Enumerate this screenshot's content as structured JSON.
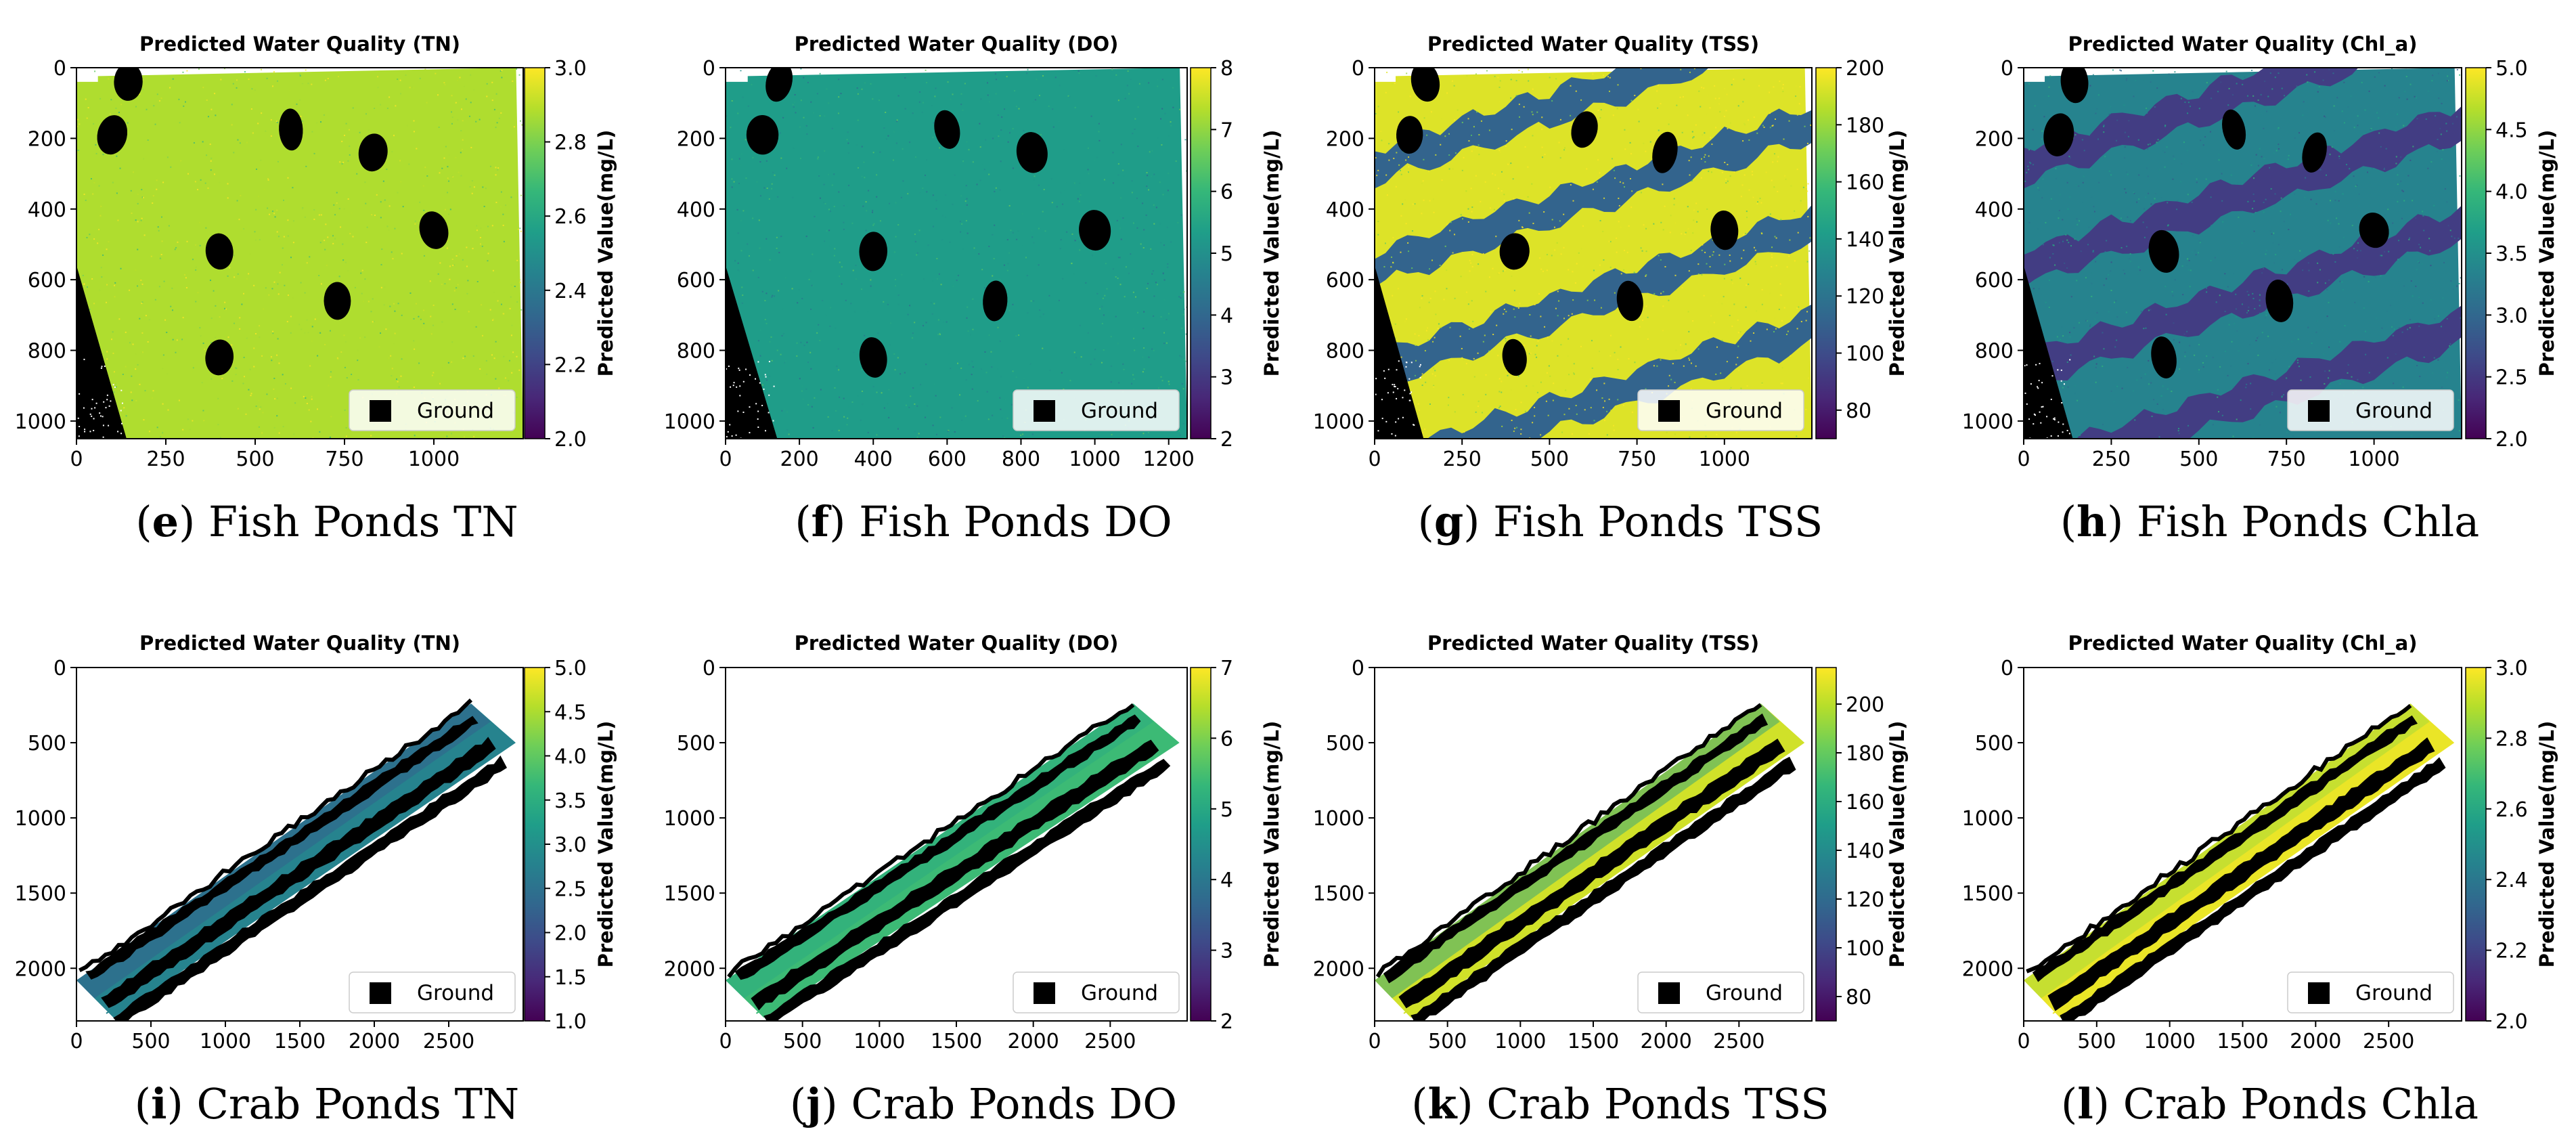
{
  "colors": {
    "viridis": [
      "#440154",
      "#482878",
      "#3e4a89",
      "#31688e",
      "#26828e",
      "#1f9e89",
      "#35b779",
      "#6ece58",
      "#b5de2b",
      "#fde725"
    ],
    "ground": "#000000",
    "legend_background": "#ffffff"
  },
  "figure": {
    "legend_label": "Ground",
    "colorbar_label": "Predicted Value(mg/L)"
  },
  "chart_data": [
    {
      "type": "heatmap",
      "letter": "e",
      "caption": "Fish Ponds TN",
      "title": "Predicted Water Quality (TN)",
      "scene": "fish",
      "color_level": 0.88,
      "xlim": [
        0,
        1250
      ],
      "ylim": [
        1050,
        0
      ],
      "xticks": [
        0,
        250,
        500,
        750,
        1000
      ],
      "yticks": [
        0,
        200,
        400,
        600,
        800,
        1000
      ],
      "colorbar": {
        "min": 2.0,
        "max": 3.0,
        "ticks": [
          "2.0",
          "2.2",
          "2.4",
          "2.6",
          "2.8",
          "3.0"
        ]
      },
      "legend": "Ground"
    },
    {
      "type": "heatmap",
      "letter": "f",
      "caption": "Fish Ponds DO",
      "title": "Predicted Water Quality (DO)",
      "scene": "fish",
      "color_level": 0.55,
      "xlim": [
        0,
        1250
      ],
      "ylim": [
        1050,
        0
      ],
      "xticks": [
        0,
        200,
        400,
        600,
        800,
        1000,
        1200
      ],
      "yticks": [
        0,
        200,
        400,
        600,
        800,
        1000
      ],
      "colorbar": {
        "min": 2,
        "max": 8,
        "ticks": [
          "2",
          "3",
          "4",
          "5",
          "6",
          "7",
          "8"
        ]
      },
      "legend": "Ground"
    },
    {
      "type": "heatmap",
      "letter": "g",
      "caption": "Fish Ponds TSS",
      "title": "Predicted Water Quality (TSS)",
      "scene": "fish-bands",
      "color_level": 0.95,
      "band_level": 0.32,
      "xlim": [
        0,
        1250
      ],
      "ylim": [
        1050,
        0
      ],
      "xticks": [
        0,
        250,
        500,
        750,
        1000
      ],
      "yticks": [
        0,
        200,
        400,
        600,
        800,
        1000
      ],
      "colorbar": {
        "min": 70,
        "max": 200,
        "ticks": [
          "80",
          "100",
          "120",
          "140",
          "160",
          "180",
          "200"
        ]
      },
      "legend": "Ground"
    },
    {
      "type": "heatmap",
      "letter": "h",
      "caption": "Fish Ponds Chla",
      "title": "Predicted Water Quality (Chl_a)",
      "scene": "fish-bands",
      "color_level": 0.45,
      "band_level": 0.18,
      "xlim": [
        0,
        1250
      ],
      "ylim": [
        1050,
        0
      ],
      "xticks": [
        0,
        250,
        500,
        750,
        1000
      ],
      "yticks": [
        0,
        200,
        400,
        600,
        800,
        1000
      ],
      "colorbar": {
        "min": 2.0,
        "max": 5.0,
        "ticks": [
          "2.0",
          "2.5",
          "3.0",
          "3.5",
          "4.0",
          "4.5",
          "5.0"
        ]
      },
      "legend": "Ground"
    },
    {
      "type": "heatmap",
      "letter": "i",
      "caption": "Crab Ponds TN",
      "title": "Predicted Water Quality (TN)",
      "scene": "crab",
      "color_level": 0.45,
      "band_level": 0.28,
      "xlim": [
        0,
        3000
      ],
      "ylim": [
        2350,
        0
      ],
      "xticks": [
        0,
        500,
        1000,
        1500,
        2000,
        2500
      ],
      "yticks": [
        0,
        500,
        1000,
        1500,
        2000
      ],
      "colorbar": {
        "min": 1.0,
        "max": 5.0,
        "ticks": [
          "1.0",
          "1.5",
          "2.0",
          "2.5",
          "3.0",
          "3.5",
          "4.0",
          "4.5",
          "5.0"
        ]
      },
      "legend": "Ground"
    },
    {
      "type": "heatmap",
      "letter": "j",
      "caption": "Crab Ponds DO",
      "title": "Predicted Water Quality (DO)",
      "scene": "crab",
      "color_level": 0.68,
      "band_level": 0.6,
      "xlim": [
        0,
        3000
      ],
      "ylim": [
        2350,
        0
      ],
      "xticks": [
        0,
        500,
        1000,
        1500,
        2000,
        2500
      ],
      "yticks": [
        0,
        500,
        1000,
        1500,
        2000
      ],
      "colorbar": {
        "min": 2,
        "max": 7,
        "ticks": [
          "2",
          "3",
          "4",
          "5",
          "6",
          "7"
        ]
      },
      "legend": "Ground"
    },
    {
      "type": "heatmap",
      "letter": "k",
      "caption": "Crab Ponds TSS",
      "title": "Predicted Water Quality (TSS)",
      "scene": "crab",
      "color_level": 0.93,
      "band_level": 0.55,
      "xlim": [
        0,
        3000
      ],
      "ylim": [
        2350,
        0
      ],
      "xticks": [
        0,
        500,
        1000,
        1500,
        2000,
        2500
      ],
      "yticks": [
        0,
        500,
        1000,
        1500,
        2000
      ],
      "colorbar": {
        "min": 70,
        "max": 215,
        "ticks": [
          "80",
          "100",
          "120",
          "140",
          "160",
          "180",
          "200"
        ]
      },
      "legend": "Ground"
    },
    {
      "type": "heatmap",
      "letter": "l",
      "caption": "Crab Ponds Chla",
      "title": "Predicted Water Quality (Chl_a)",
      "scene": "crab",
      "color_level": 0.97,
      "band_level": 0.85,
      "xlim": [
        0,
        3000
      ],
      "ylim": [
        2350,
        0
      ],
      "xticks": [
        0,
        500,
        1000,
        1500,
        2000,
        2500
      ],
      "yticks": [
        0,
        500,
        1000,
        1500,
        2000
      ],
      "colorbar": {
        "min": 2.0,
        "max": 3.0,
        "ticks": [
          "2.0",
          "2.2",
          "2.4",
          "2.6",
          "2.8",
          "3.0"
        ]
      },
      "legend": "Ground"
    }
  ]
}
